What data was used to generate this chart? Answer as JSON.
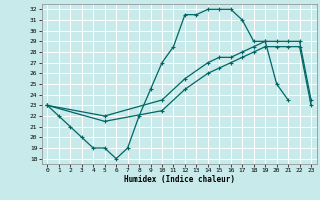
{
  "title": "",
  "xlabel": "Humidex (Indice chaleur)",
  "bg_color": "#c8eaea",
  "grid_color": "#ffffff",
  "line_color": "#006666",
  "xlim": [
    -0.5,
    23.5
  ],
  "ylim": [
    17.5,
    32.5
  ],
  "yticks": [
    18,
    19,
    20,
    21,
    22,
    23,
    24,
    25,
    26,
    27,
    28,
    29,
    30,
    31,
    32
  ],
  "xticks": [
    0,
    1,
    2,
    3,
    4,
    5,
    6,
    7,
    8,
    9,
    10,
    11,
    12,
    13,
    14,
    15,
    16,
    17,
    18,
    19,
    20,
    21,
    22,
    23
  ],
  "curve1_x": [
    0,
    1,
    2,
    3,
    4,
    5,
    6,
    7,
    8,
    9,
    10,
    11,
    12,
    13,
    14,
    15,
    16,
    17,
    18,
    19,
    20,
    21
  ],
  "curve1_y": [
    23.0,
    22.0,
    21.0,
    20.0,
    19.0,
    19.0,
    18.0,
    19.0,
    22.0,
    24.5,
    27.0,
    28.5,
    31.5,
    31.5,
    32.0,
    32.0,
    32.0,
    31.0,
    29.0,
    29.0,
    25.0,
    23.5
  ],
  "curve2_x": [
    0,
    5,
    10,
    12,
    14,
    15,
    16,
    17,
    18,
    19,
    20,
    21,
    22,
    23
  ],
  "curve2_y": [
    23.0,
    22.0,
    23.5,
    25.5,
    27.0,
    27.5,
    27.5,
    28.0,
    28.5,
    29.0,
    29.0,
    29.0,
    29.0,
    23.5
  ],
  "curve3_x": [
    0,
    5,
    10,
    12,
    14,
    15,
    16,
    17,
    18,
    19,
    20,
    21,
    22,
    23
  ],
  "curve3_y": [
    23.0,
    21.5,
    22.5,
    24.5,
    26.0,
    26.5,
    27.0,
    27.5,
    28.0,
    28.5,
    28.5,
    28.5,
    28.5,
    23.0
  ]
}
